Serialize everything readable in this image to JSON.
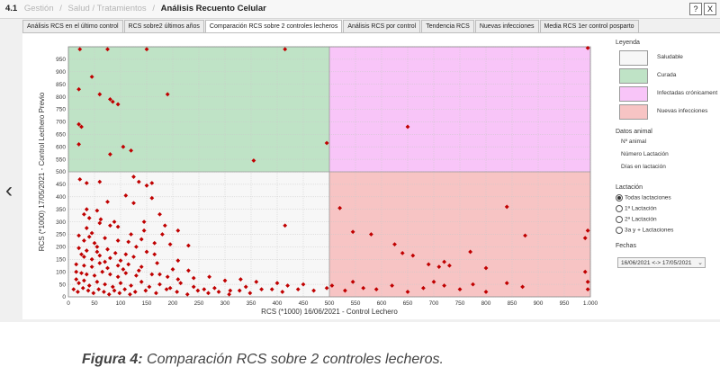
{
  "breadcrumb": {
    "number": "4.1",
    "items": [
      "Gestión",
      "Salud / Tratamientos"
    ],
    "separator": "/",
    "current": "Análisis Recuento Celular"
  },
  "window_buttons": {
    "help": "?",
    "close": "X"
  },
  "tabs": [
    {
      "label": "Análisis RCS en el último control",
      "active": false
    },
    {
      "label": "RCS sobre2 últimos años",
      "active": false
    },
    {
      "label": "Comparación RCS sobre 2 controles lecheros",
      "active": true
    },
    {
      "label": "Análisis RCS por control",
      "active": false
    },
    {
      "label": "Tendencia RCS",
      "active": false
    },
    {
      "label": "Nuevas infecciones",
      "active": false
    },
    {
      "label": "Media RCS 1er control posparto",
      "active": false
    }
  ],
  "nav": {
    "back_icon": "chevron-left-icon",
    "back_glyph": "‹"
  },
  "legend": {
    "title": "Leyenda",
    "items": [
      {
        "label": "Saludable",
        "color": "#f7f7f7"
      },
      {
        "label": "Curada",
        "color": "#bfe3c6"
      },
      {
        "label": "Infectadas crónicament",
        "color": "#f8c5f8"
      },
      {
        "label": "Nuevas infecciones",
        "color": "#f7c4c4"
      }
    ]
  },
  "datos_animal": {
    "title": "Datos animal",
    "fields": [
      "Nº animal",
      "Número Lactación",
      "Días en lactación"
    ]
  },
  "lactacion": {
    "title": "Lactación",
    "options": [
      {
        "label": "Todas lactaciones",
        "selected": true
      },
      {
        "label": "1ª Lactación",
        "selected": false
      },
      {
        "label": "2ª Lactación",
        "selected": false
      },
      {
        "label": "3a y + Lactaciones",
        "selected": false
      }
    ]
  },
  "fechas": {
    "title": "Fechas",
    "value": "16/06/2021 <-> 17/05/2021"
  },
  "caption": {
    "label": "Figura 4:",
    "text": " Comparación RCS sobre 2 controles lecheros."
  },
  "chart_data": {
    "type": "scatter",
    "xlabel": "RCS (*1000) 16/06/2021 - Control Lechero",
    "ylabel": "RCS (*1000) 17/05/2021 - Control Lechero Previo",
    "xlim": [
      0,
      1000
    ],
    "ylim": [
      0,
      1000
    ],
    "x_ticks": [
      0,
      50,
      100,
      150,
      200,
      250,
      300,
      350,
      400,
      450,
      500,
      550,
      600,
      650,
      700,
      750,
      800,
      850,
      900,
      950,
      "1.000"
    ],
    "y_ticks": [
      0,
      50,
      100,
      150,
      200,
      250,
      300,
      350,
      400,
      450,
      500,
      550,
      600,
      650,
      700,
      750,
      800,
      850,
      900,
      950
    ],
    "threshold": 500,
    "grid": true,
    "zones": [
      {
        "name": "Saludable",
        "x": [
          0,
          500
        ],
        "y": [
          0,
          500
        ],
        "color": "#f7f7f7"
      },
      {
        "name": "Curada",
        "x": [
          0,
          500
        ],
        "y": [
          500,
          1000
        ],
        "color": "#bfe3c6"
      },
      {
        "name": "Infectadas crónicament",
        "x": [
          500,
          1000
        ],
        "y": [
          500,
          1000
        ],
        "color": "#f8c5f8"
      },
      {
        "name": "Nuevas infecciones",
        "x": [
          500,
          1000
        ],
        "y": [
          0,
          500
        ],
        "color": "#f7c4c4"
      }
    ],
    "point_color": "#c00000",
    "points": [
      [
        22,
        990
      ],
      [
        75,
        990
      ],
      [
        150,
        990
      ],
      [
        415,
        990
      ],
      [
        20,
        830
      ],
      [
        45,
        880
      ],
      [
        60,
        810
      ],
      [
        80,
        790
      ],
      [
        85,
        780
      ],
      [
        95,
        770
      ],
      [
        190,
        810
      ],
      [
        20,
        690
      ],
      [
        25,
        680
      ],
      [
        105,
        600
      ],
      [
        120,
        585
      ],
      [
        80,
        570
      ],
      [
        20,
        610
      ],
      [
        355,
        545
      ],
      [
        495,
        615
      ],
      [
        650,
        680
      ],
      [
        995,
        995
      ],
      [
        22,
        470
      ],
      [
        35,
        455
      ],
      [
        60,
        460
      ],
      [
        125,
        480
      ],
      [
        135,
        460
      ],
      [
        160,
        455
      ],
      [
        150,
        445
      ],
      [
        160,
        395
      ],
      [
        125,
        375
      ],
      [
        30,
        330
      ],
      [
        35,
        350
      ],
      [
        55,
        345
      ],
      [
        75,
        380
      ],
      [
        110,
        405
      ],
      [
        40,
        315
      ],
      [
        60,
        295
      ],
      [
        35,
        275
      ],
      [
        80,
        285
      ],
      [
        95,
        280
      ],
      [
        145,
        300
      ],
      [
        175,
        330
      ],
      [
        185,
        285
      ],
      [
        415,
        285
      ],
      [
        145,
        265
      ],
      [
        180,
        250
      ],
      [
        210,
        265
      ],
      [
        20,
        245
      ],
      [
        45,
        255
      ],
      [
        30,
        225
      ],
      [
        50,
        215
      ],
      [
        70,
        235
      ],
      [
        95,
        225
      ],
      [
        115,
        220
      ],
      [
        140,
        230
      ],
      [
        165,
        215
      ],
      [
        195,
        210
      ],
      [
        230,
        205
      ],
      [
        20,
        195
      ],
      [
        35,
        185
      ],
      [
        55,
        180
      ],
      [
        75,
        190
      ],
      [
        90,
        175
      ],
      [
        110,
        170
      ],
      [
        150,
        180
      ],
      [
        30,
        160
      ],
      [
        45,
        150
      ],
      [
        60,
        165
      ],
      [
        80,
        155
      ],
      [
        100,
        145
      ],
      [
        125,
        160
      ],
      [
        15,
        130
      ],
      [
        30,
        125
      ],
      [
        45,
        120
      ],
      [
        60,
        135
      ],
      [
        75,
        115
      ],
      [
        95,
        125
      ],
      [
        115,
        130
      ],
      [
        140,
        120
      ],
      [
        170,
        135
      ],
      [
        200,
        110
      ],
      [
        230,
        105
      ],
      [
        15,
        100
      ],
      [
        25,
        95
      ],
      [
        35,
        90
      ],
      [
        50,
        85
      ],
      [
        65,
        100
      ],
      [
        80,
        90
      ],
      [
        95,
        80
      ],
      [
        110,
        95
      ],
      [
        130,
        85
      ],
      [
        160,
        90
      ],
      [
        190,
        80
      ],
      [
        210,
        70
      ],
      [
        240,
        75
      ],
      [
        270,
        80
      ],
      [
        300,
        65
      ],
      [
        330,
        70
      ],
      [
        360,
        60
      ],
      [
        400,
        55
      ],
      [
        420,
        45
      ],
      [
        450,
        50
      ],
      [
        15,
        70
      ],
      [
        20,
        55
      ],
      [
        30,
        65
      ],
      [
        40,
        45
      ],
      [
        55,
        60
      ],
      [
        70,
        50
      ],
      [
        85,
        40
      ],
      [
        100,
        55
      ],
      [
        120,
        45
      ],
      [
        140,
        60
      ],
      [
        155,
        40
      ],
      [
        175,
        50
      ],
      [
        195,
        35
      ],
      [
        215,
        55
      ],
      [
        240,
        40
      ],
      [
        260,
        30
      ],
      [
        280,
        35
      ],
      [
        310,
        25
      ],
      [
        340,
        40
      ],
      [
        370,
        30
      ],
      [
        10,
        30
      ],
      [
        18,
        20
      ],
      [
        28,
        35
      ],
      [
        38,
        25
      ],
      [
        48,
        15
      ],
      [
        58,
        30
      ],
      [
        68,
        20
      ],
      [
        78,
        10
      ],
      [
        88,
        25
      ],
      [
        98,
        15
      ],
      [
        108,
        30
      ],
      [
        118,
        10
      ],
      [
        128,
        20
      ],
      [
        148,
        25
      ],
      [
        168,
        15
      ],
      [
        188,
        30
      ],
      [
        208,
        20
      ],
      [
        228,
        10
      ],
      [
        248,
        25
      ],
      [
        268,
        15
      ],
      [
        288,
        20
      ],
      [
        308,
        10
      ],
      [
        328,
        25
      ],
      [
        348,
        15
      ],
      [
        390,
        30
      ],
      [
        410,
        20
      ],
      [
        440,
        30
      ],
      [
        470,
        25
      ],
      [
        495,
        35
      ],
      [
        40,
        240
      ],
      [
        62,
        310
      ],
      [
        88,
        300
      ],
      [
        120,
        250
      ],
      [
        130,
        200
      ],
      [
        165,
        170
      ],
      [
        210,
        145
      ],
      [
        55,
        200
      ],
      [
        70,
        140
      ],
      [
        25,
        170
      ],
      [
        105,
        110
      ],
      [
        135,
        105
      ],
      [
        175,
        90
      ],
      [
        520,
        355
      ],
      [
        545,
        260
      ],
      [
        580,
        250
      ],
      [
        625,
        210
      ],
      [
        640,
        175
      ],
      [
        660,
        165
      ],
      [
        690,
        130
      ],
      [
        710,
        120
      ],
      [
        720,
        140
      ],
      [
        730,
        125
      ],
      [
        770,
        180
      ],
      [
        800,
        115
      ],
      [
        840,
        360
      ],
      [
        875,
        245
      ],
      [
        990,
        235
      ],
      [
        995,
        265
      ],
      [
        990,
        100
      ],
      [
        995,
        60
      ],
      [
        995,
        30
      ],
      [
        545,
        60
      ],
      [
        565,
        35
      ],
      [
        590,
        30
      ],
      [
        620,
        45
      ],
      [
        650,
        20
      ],
      [
        680,
        35
      ],
      [
        700,
        60
      ],
      [
        720,
        45
      ],
      [
        750,
        30
      ],
      [
        775,
        50
      ],
      [
        800,
        20
      ],
      [
        840,
        55
      ],
      [
        870,
        40
      ],
      [
        505,
        45
      ],
      [
        530,
        25
      ]
    ]
  }
}
